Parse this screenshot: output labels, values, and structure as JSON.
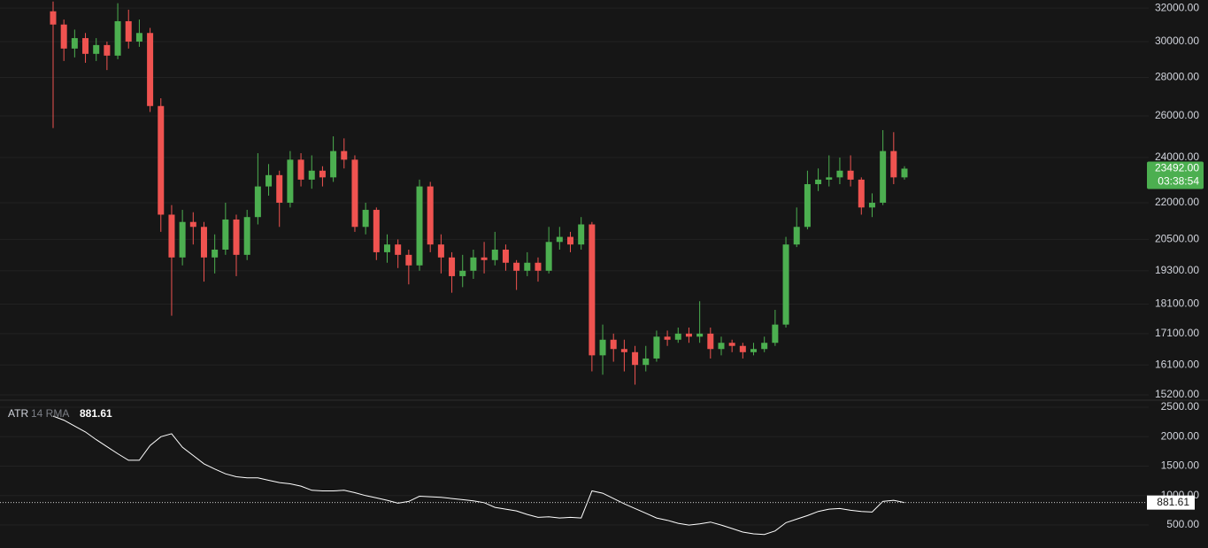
{
  "chart_data": [
    {
      "type": "candlestick",
      "log_scale": true,
      "grid": true,
      "up_color": "#4caf50",
      "down_color": "#ef5350",
      "ylim": [
        15070,
        32500
      ],
      "yticks": [
        {
          "value": 32000,
          "label": "32000.00"
        },
        {
          "value": 30000,
          "label": "30000.00"
        },
        {
          "value": 28000,
          "label": "28000.00"
        },
        {
          "value": 26000,
          "label": "26000.00"
        },
        {
          "value": 24000,
          "label": "24000.00"
        },
        {
          "value": 22000,
          "label": "22000.00"
        },
        {
          "value": 20500,
          "label": "20500.00"
        },
        {
          "value": 19300,
          "label": "19300.00"
        },
        {
          "value": 18100,
          "label": "18100.00"
        },
        {
          "value": 17100,
          "label": "17100.00"
        },
        {
          "value": 16100,
          "label": "16100.00"
        },
        {
          "value": 15200,
          "label": "15200.00"
        }
      ],
      "last_price_label": "23492.00",
      "countdown": "03:38:54",
      "open": [
        31800,
        31000,
        29600,
        30200,
        29300,
        29800,
        29200,
        31200,
        30000,
        30500,
        26500,
        21500,
        19800,
        21200,
        21000,
        19800,
        20100,
        21300,
        19900,
        21400,
        22700,
        23200,
        22000,
        23900,
        23000,
        23400,
        23100,
        24300,
        23900,
        21000,
        21700,
        20000,
        20300,
        19900,
        19500,
        22700,
        20300,
        19800,
        19100,
        19300,
        19800,
        19700,
        20100,
        19600,
        19300,
        19600,
        19300,
        20400,
        20600,
        20300,
        21100,
        16400,
        16900,
        16600,
        16500,
        16100,
        16300,
        17000,
        16900,
        17100,
        17000,
        17100,
        16600,
        16800,
        16700,
        16500,
        16600,
        16800,
        17400,
        20300,
        21000,
        22800,
        23000,
        23100,
        23400,
        23000,
        21800,
        22000,
        24300,
        23100
      ],
      "high": [
        32400,
        31300,
        30700,
        30500,
        30200,
        30000,
        32300,
        31900,
        31300,
        30800,
        26900,
        21900,
        21700,
        21600,
        21200,
        20700,
        22000,
        21500,
        21700,
        24200,
        23700,
        23400,
        24300,
        24200,
        24100,
        23600,
        25000,
        24900,
        24100,
        22000,
        21800,
        20700,
        20500,
        20100,
        23000,
        22900,
        20700,
        20000,
        19900,
        20100,
        20400,
        20800,
        20300,
        19700,
        20000,
        19800,
        21000,
        21000,
        20800,
        21400,
        21200,
        17400,
        17100,
        16900,
        16700,
        16700,
        17200,
        17200,
        17300,
        17300,
        18200,
        17300,
        17000,
        16900,
        16800,
        16800,
        17000,
        17900,
        20600,
        21800,
        23400,
        23500,
        24100,
        24000,
        24100,
        23100,
        22400,
        25300,
        25200,
        23600
      ],
      "low": [
        25400,
        28900,
        29100,
        28800,
        28900,
        28400,
        29000,
        29600,
        29700,
        26200,
        20800,
        17700,
        19500,
        20300,
        18900,
        19200,
        19900,
        19100,
        19700,
        21100,
        22300,
        21000,
        21800,
        22700,
        22600,
        22700,
        22900,
        23500,
        20800,
        20700,
        19700,
        19600,
        19400,
        18800,
        19300,
        20000,
        19200,
        18500,
        18700,
        19000,
        19200,
        19500,
        19300,
        18600,
        19100,
        18900,
        19200,
        20100,
        20000,
        20100,
        15900,
        15800,
        16200,
        15900,
        15500,
        15900,
        16200,
        16700,
        16800,
        16800,
        16800,
        16300,
        16400,
        16500,
        16300,
        16400,
        16500,
        16700,
        17300,
        20200,
        20900,
        22500,
        22700,
        22800,
        22700,
        21500,
        21400,
        21900,
        22800,
        23000
      ],
      "close": [
        31000,
        29600,
        30200,
        29300,
        29800,
        29200,
        31200,
        30000,
        30500,
        26500,
        21500,
        19800,
        21200,
        21000,
        19800,
        20100,
        21300,
        19900,
        21400,
        22700,
        23200,
        22000,
        23900,
        23000,
        23400,
        23100,
        24300,
        23900,
        21000,
        21700,
        20000,
        20300,
        19900,
        19500,
        22700,
        20300,
        19800,
        19100,
        19300,
        19800,
        19700,
        20100,
        19600,
        19300,
        19600,
        19300,
        20400,
        20600,
        20300,
        21100,
        16400,
        16900,
        16600,
        16500,
        16100,
        16300,
        17000,
        16900,
        17100,
        17000,
        17100,
        16600,
        16800,
        16700,
        16500,
        16600,
        16800,
        17400,
        20300,
        21000,
        22800,
        23000,
        23100,
        23400,
        23000,
        21800,
        22000,
        24300,
        23100,
        23492
      ]
    },
    {
      "type": "line",
      "title": "ATR",
      "subtitle": "14 RMA",
      "color": "#ffffff",
      "grid": true,
      "ylim": [
        110,
        2605
      ],
      "yticks": [
        {
          "value": 2500,
          "label": "2500.00"
        },
        {
          "value": 2000,
          "label": "2000.00"
        },
        {
          "value": 1500,
          "label": "1500.00"
        },
        {
          "value": 1000,
          "label": "1000.00"
        },
        {
          "value": 500,
          "label": "500.00"
        }
      ],
      "values": [
        2350,
        2280,
        2180,
        2080,
        1950,
        1830,
        1710,
        1600,
        1600,
        1850,
        2000,
        2050,
        1820,
        1680,
        1540,
        1450,
        1370,
        1320,
        1300,
        1300,
        1260,
        1220,
        1200,
        1160,
        1090,
        1080,
        1080,
        1090,
        1050,
        1000,
        960,
        920,
        870,
        900,
        990,
        980,
        970,
        950,
        930,
        910,
        880,
        800,
        770,
        740,
        680,
        630,
        640,
        620,
        630,
        620,
        1080,
        1040,
        950,
        860,
        780,
        700,
        620,
        580,
        530,
        500,
        520,
        550,
        500,
        440,
        380,
        350,
        340,
        400,
        540,
        600,
        660,
        730,
        770,
        780,
        750,
        730,
        720,
        900,
        920,
        881.61
      ]
    }
  ]
}
